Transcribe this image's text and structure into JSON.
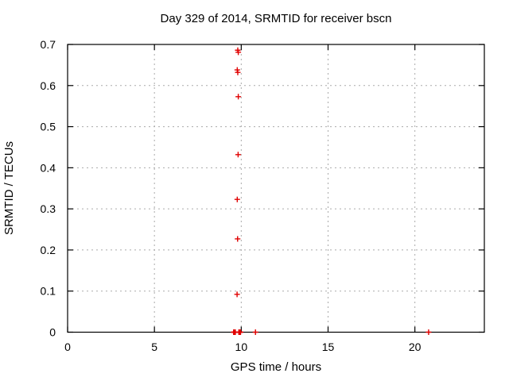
{
  "window": {
    "background": "#ffffff"
  },
  "chart_data": {
    "type": "scatter",
    "title": "Day 329 of 2014, SRMTID for receiver bscn",
    "xlabel": "GPS time / hours",
    "ylabel": "SRMTID / TECUs",
    "xlim": [
      0,
      24
    ],
    "ylim": [
      0,
      0.7
    ],
    "grid": true,
    "legend": "none",
    "xticks": [
      {
        "value": 0,
        "label": "0"
      },
      {
        "value": 5,
        "label": "5"
      },
      {
        "value": 10,
        "label": "10"
      },
      {
        "value": 15,
        "label": "15"
      },
      {
        "value": 20,
        "label": "20"
      }
    ],
    "yticks": [
      {
        "value": 0.0,
        "label": "0"
      },
      {
        "value": 0.1,
        "label": "0.1"
      },
      {
        "value": 0.2,
        "label": "0.2"
      },
      {
        "value": 0.3,
        "label": "0.3"
      },
      {
        "value": 0.4,
        "label": "0.4"
      },
      {
        "value": 0.5,
        "label": "0.5"
      },
      {
        "value": 0.6,
        "label": "0.6"
      },
      {
        "value": 0.7,
        "label": "0.7"
      }
    ],
    "marker": {
      "shape": "plus",
      "size": 7,
      "stroke_width": 1.4
    },
    "colors": {
      "marker": "#e00000",
      "grid": "#aaaaaa",
      "axis": "#000000",
      "background": "#ffffff"
    },
    "series": [
      {
        "name": "SRMTID",
        "points": [
          [
            9.8,
            0.686
          ],
          [
            9.83,
            0.681
          ],
          [
            9.77,
            0.638
          ],
          [
            9.8,
            0.632
          ],
          [
            9.83,
            0.573
          ],
          [
            9.82,
            0.432
          ],
          [
            9.77,
            0.323
          ],
          [
            9.79,
            0.227
          ],
          [
            9.76,
            0.092
          ],
          [
            9.56,
            0.0
          ],
          [
            9.59,
            0.0
          ],
          [
            9.61,
            0.0
          ],
          [
            9.63,
            0.0
          ],
          [
            9.66,
            0.0
          ],
          [
            9.86,
            0.0
          ],
          [
            9.89,
            0.0
          ],
          [
            9.91,
            0.0
          ],
          [
            9.93,
            0.0
          ],
          [
            9.96,
            0.0
          ],
          [
            10.82,
            0.0
          ],
          [
            20.79,
            0.0
          ]
        ]
      }
    ]
  }
}
